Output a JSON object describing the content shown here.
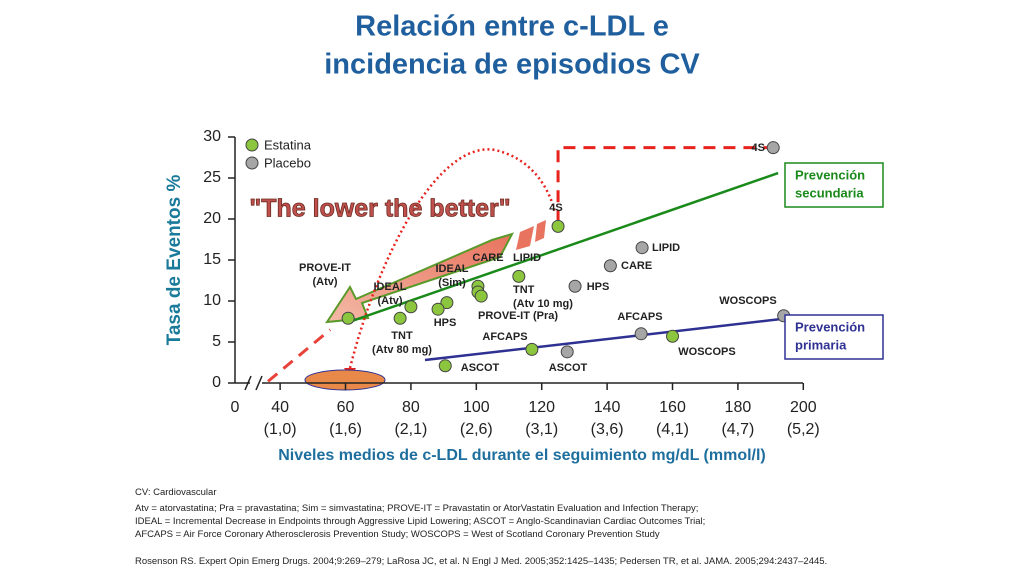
{
  "chart_data": {
    "type": "scatter",
    "title": [
      "Relación entre c-LDL e",
      "incidencia de episodios CV"
    ],
    "ylabel": "Tasa de Eventos  %",
    "xlabel": "Niveles medios de c-LDL durante el seguimiento mg/dL (mmol/l)",
    "xlim": [
      26.2,
      200
    ],
    "ylim": [
      0,
      30
    ],
    "xticks": [
      40,
      60,
      80,
      100,
      120,
      140,
      160,
      180,
      200
    ],
    "xtick_sublabels": [
      "(1,0)",
      "(1,6)",
      "(2,1)",
      "(2,6)",
      "(3,1)",
      "(3,6)",
      "(4,1)",
      "(4,7)",
      "(5,2)"
    ],
    "x_break_label": "0",
    "yticks": [
      0,
      5,
      10,
      15,
      20,
      25,
      30
    ],
    "series": [
      {
        "name": "Estatina",
        "color": "#8cc63f",
        "x": [
          125,
          113,
          100.5,
          100.5,
          101.5,
          91,
          88.3,
          80,
          76.7,
          60.8,
          90.5,
          117,
          160
        ],
        "values": [
          19.1,
          13.0,
          11.8,
          11.1,
          10.6,
          9.8,
          9.0,
          9.3,
          7.9,
          7.9,
          2.1,
          4.1,
          5.7
        ],
        "labels": [
          [
            "4S"
          ],
          [
            "LIPID"
          ],
          [
            "CARE"
          ],
          [
            "IDEAL",
            "(Sim)"
          ],
          [
            "TNT",
            "(Atv 10 mg)"
          ],
          [
            "HPS"
          ],
          [
            "PROVE-IT (Pra)"
          ],
          [
            "IDEAL",
            "(Atv)"
          ],
          [
            "TNT",
            "(Atv 80 mg)"
          ],
          [
            "PROVE-IT",
            "(Atv)"
          ],
          [
            "ASCOT"
          ],
          [
            "AFCAPS"
          ],
          [
            "WOSCOPS"
          ]
        ]
      },
      {
        "name": "Placebo",
        "color": "#a6a6a6",
        "x": [
          190.8,
          150.7,
          141,
          130.2,
          150.4,
          194,
          127.8
        ],
        "values": [
          28.7,
          16.5,
          14.3,
          11.8,
          6.0,
          8.2,
          3.8
        ],
        "labels": [
          [
            "4S"
          ],
          [
            "LIPID"
          ],
          [
            "CARE"
          ],
          [
            "HPS"
          ],
          [
            "AFCAPS"
          ],
          [
            "WOSCOPS"
          ],
          [
            "ASCOT"
          ]
        ]
      }
    ],
    "trend_lines": [
      {
        "x": [
          60.8,
          192.3
        ],
        "values": [
          7.4,
          25.6
        ],
        "color": "#1a8a1a",
        "dashed": false
      },
      {
        "x": [
          36.3,
          55.3
        ],
        "values": [
          0.2,
          6.5
        ],
        "color": "#e8423a",
        "dashed": true
      },
      {
        "x": [
          84.3,
          197.5
        ],
        "values": [
          2.8,
          8.0
        ],
        "color": "#2e3192",
        "dashed": false
      },
      {
        "x": [
          125,
          125,
          189.5
        ],
        "values": [
          19.6,
          28.7,
          28.7
        ],
        "color": "#e8231e",
        "dashed": true
      }
    ],
    "boxes": [
      {
        "lines": [
          "Prevención",
          "secundaria"
        ],
        "color": "#1a8a1a"
      },
      {
        "lines": [
          "Prevención",
          "primaria"
        ],
        "color": "#2e3192"
      }
    ],
    "slogan": "\"The lower the better\"",
    "footnotes": [
      "CV: Cardiovascular",
      "Atv = atorvastatina; Pra = pravastatina; Sim = simvastatina; PROVE-IT = Pravastatin or AtorVastatin Evaluation and Infection Therapy;",
      "IDEAL = Incremental Decrease in Endpoints through Aggressive Lipid Lowering; ASCOT = Anglo-Scandinavian Cardiac Outcomes Trial;",
      "AFCAPS = Air Force Coronary Atherosclerosis Prevention Study; WOSCOPS = West of Scotland Coronary Prevention Study",
      "Rosenson RS. Expert Opin Emerg Drugs. 2004;9:269–279; LaRosa JC, et al. N Engl J Med. 2005;352:1425–1435; Pedersen TR, et al. JAMA. 2005;294:2437–2445."
    ]
  }
}
